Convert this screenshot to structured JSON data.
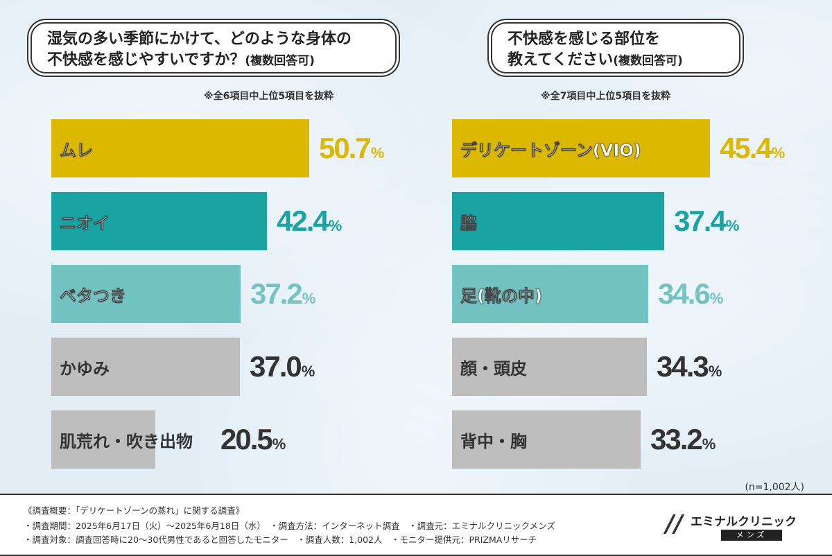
{
  "left_question": {
    "line1": "湿気の多い季節にかけて、どのような身体の",
    "line2": "不快感を感じやすいですか？",
    "suffix": "(複数回答可)",
    "note": "※全6項目中上位5項目を抜粋"
  },
  "right_question": {
    "line1": "不快感を感じる部位を",
    "line2": "教えてください",
    "suffix": "(複数回答可)",
    "note": "※全7項目中上位5項目を抜粋"
  },
  "chart_data": [
    {
      "type": "bar",
      "orientation": "horizontal",
      "title": "湿気の多い季節にかけて、どのような身体の不快感を感じやすいですか？(複数回答可)",
      "categories": [
        "ムレ",
        "ニオイ",
        "ベタつき",
        "かゆみ",
        "肌荒れ・吹き出物"
      ],
      "values": [
        50.7,
        42.4,
        37.2,
        37.0,
        20.5
      ],
      "labels": [
        "50.7",
        "42.4",
        "37.2",
        "37.0",
        "20.5"
      ],
      "unit": "%",
      "colors": [
        "#dcb800",
        "#1aa3a3",
        "#74c3c3",
        "#bdbdbd",
        "#bdbdbd"
      ],
      "value_colors": [
        "#dcb800",
        "#1aa3a3",
        "#74c3c3",
        "#333333",
        "#333333"
      ],
      "label_styles": [
        "light",
        "light",
        "light",
        "dark",
        "dark"
      ],
      "xlim": [
        0,
        60
      ]
    },
    {
      "type": "bar",
      "orientation": "horizontal",
      "title": "不快感を感じる部位を教えてください(複数回答可)",
      "categories": [
        "デリケートゾーン(VIO)",
        "脇",
        "足(靴の中)",
        "顔・頭皮",
        "背中・胸"
      ],
      "values": [
        45.4,
        37.4,
        34.6,
        34.3,
        33.2
      ],
      "labels": [
        "45.4",
        "37.4",
        "34.6",
        "34.3",
        "33.2"
      ],
      "unit": "%",
      "colors": [
        "#dcb800",
        "#1aa3a3",
        "#74c3c3",
        "#bdbdbd",
        "#bdbdbd"
      ],
      "value_colors": [
        "#dcb800",
        "#1aa3a3",
        "#74c3c3",
        "#333333",
        "#333333"
      ],
      "label_styles": [
        "light",
        "light",
        "light",
        "dark",
        "dark"
      ],
      "xlim": [
        0,
        60
      ]
    }
  ],
  "sample_note": "(n=1,002人)",
  "footer": {
    "line1": "《調査概要：「デリケートゾーンの蒸れ」に関する調査》",
    "line2": "・調査期間：2025年6月17日（火）～2025年6月18日（水）　・調査方法：インターネット調査　・調査元：エミナルクリニックメンズ",
    "line3": "・調査対象：調査回答時に20～30代男性であると回答したモニター　・調査人数：1,002人　・モニター提供元：PRIZMAリサーチ"
  },
  "logo": {
    "name": "エミナルクリニック",
    "tag": "メンズ",
    "icon": "slash-logo-icon"
  }
}
